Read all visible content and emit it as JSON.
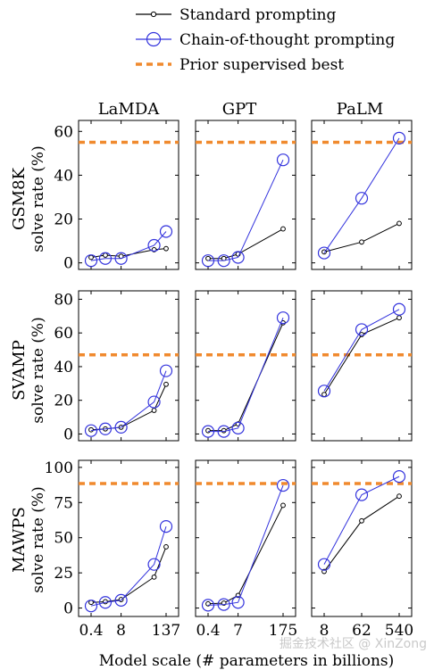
{
  "legend": [
    {
      "key": "standard",
      "label": "Standard prompting"
    },
    {
      "key": "cot",
      "label": "Chain-of-thought prompting"
    },
    {
      "key": "prior",
      "label": "Prior supervised best"
    }
  ],
  "colors": {
    "standard": "#000000",
    "cot": "#3333dd",
    "prior": "#f08a2e"
  },
  "columns": [
    "LaMDA",
    "GPT",
    "PaLM"
  ],
  "rows": [
    "GSM8K",
    "SVAMP",
    "MAWPS"
  ],
  "ylabel": "solve rate (%)",
  "xlabel": "Model scale (# parameters in billions)",
  "watermark": "掘金技术社区 @ XinZong",
  "chart_data": {
    "type": "line",
    "x_tick_labels": {
      "LaMDA": [
        "0.4",
        "8",
        "137"
      ],
      "GPT": [
        "0.4",
        "7",
        "175"
      ],
      "PaLM": [
        "8",
        "62",
        "540"
      ]
    },
    "models": {
      "LaMDA": [
        "0.4",
        "2",
        "8",
        "68",
        "137"
      ],
      "GPT": [
        "0.4",
        "2",
        "7",
        "175"
      ],
      "PaLM": [
        "8",
        "62",
        "540"
      ]
    },
    "panels": [
      {
        "row": "GSM8K",
        "col": "LaMDA",
        "ylim": [
          -3,
          65
        ],
        "yticks": [
          0,
          20,
          40,
          60
        ],
        "prior": 55,
        "series": {
          "standard": [
            2.5,
            3.5,
            3,
            6,
            6.5
          ],
          "cot": [
            1,
            2,
            2,
            8,
            14.3
          ]
        }
      },
      {
        "row": "GSM8K",
        "col": "GPT",
        "ylim": [
          -3,
          65
        ],
        "yticks": [
          0,
          20,
          40,
          60
        ],
        "prior": 55,
        "series": {
          "standard": [
            2,
            2,
            4,
            15.5
          ],
          "cot": [
            1,
            1,
            2.5,
            47
          ]
        }
      },
      {
        "row": "GSM8K",
        "col": "PaLM",
        "ylim": [
          -3,
          65
        ],
        "yticks": [
          0,
          20,
          40,
          60
        ],
        "prior": 55,
        "series": {
          "standard": [
            5,
            9.5,
            18
          ],
          "cot": [
            4.5,
            29.5,
            56.9
          ]
        }
      },
      {
        "row": "SVAMP",
        "col": "LaMDA",
        "ylim": [
          -4,
          85
        ],
        "yticks": [
          0,
          20,
          40,
          60,
          80
        ],
        "prior": 47,
        "series": {
          "standard": [
            2.5,
            3,
            4,
            14,
            29.5
          ],
          "cot": [
            2,
            3,
            4,
            19,
            37.5
          ]
        }
      },
      {
        "row": "SVAMP",
        "col": "GPT",
        "ylim": [
          -4,
          85
        ],
        "yticks": [
          0,
          20,
          40,
          60,
          80
        ],
        "prior": 47,
        "series": {
          "standard": [
            2,
            2,
            6,
            66
          ],
          "cot": [
            1.5,
            1.5,
            3.5,
            69
          ]
        }
      },
      {
        "row": "SVAMP",
        "col": "PaLM",
        "ylim": [
          -4,
          85
        ],
        "yticks": [
          0,
          20,
          40,
          60,
          80
        ],
        "prior": 47,
        "series": {
          "standard": [
            23.5,
            59,
            69
          ],
          "cot": [
            25.5,
            62,
            74
          ]
        }
      },
      {
        "row": "MAWPS",
        "col": "LaMDA",
        "ylim": [
          -6,
          105
        ],
        "yticks": [
          0,
          25,
          50,
          75,
          100
        ],
        "prior": 88.5,
        "series": {
          "standard": [
            4,
            4.5,
            6,
            22,
            43.5
          ],
          "cot": [
            1.5,
            4,
            5.5,
            31,
            58
          ]
        }
      },
      {
        "row": "MAWPS",
        "col": "GPT",
        "ylim": [
          -6,
          105
        ],
        "yticks": [
          0,
          25,
          50,
          75,
          100
        ],
        "prior": 88.5,
        "series": {
          "standard": [
            3,
            3.5,
            9,
            73
          ],
          "cot": [
            2,
            2.5,
            4,
            87.2
          ]
        }
      },
      {
        "row": "MAWPS",
        "col": "PaLM",
        "ylim": [
          -6,
          105
        ],
        "yticks": [
          0,
          25,
          50,
          75,
          100
        ],
        "prior": 88.5,
        "series": {
          "standard": [
            26,
            62,
            79.5
          ],
          "cot": [
            31,
            80.5,
            93.5
          ]
        }
      }
    ]
  }
}
